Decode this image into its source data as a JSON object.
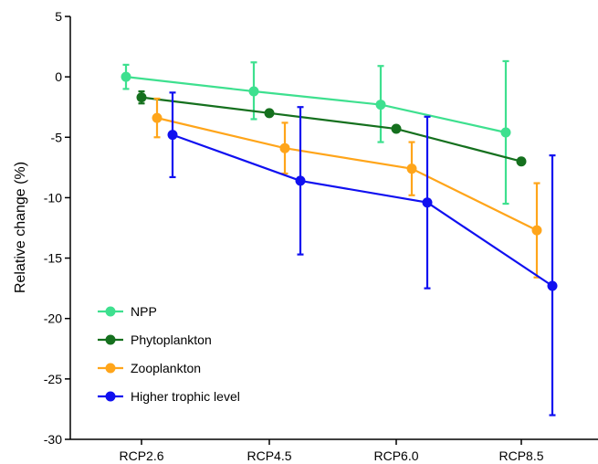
{
  "chart_data": {
    "type": "line",
    "title": "",
    "xlabel": "",
    "ylabel": "Relative change (%)",
    "categories": [
      "RCP2.6",
      "RCP4.5",
      "RCP6.0",
      "RCP8.5"
    ],
    "ylim": [
      -30,
      5
    ],
    "yticks": [
      5,
      0,
      -5,
      -10,
      -15,
      -20,
      -25,
      -30
    ],
    "grid": false,
    "legend_position": "bottom-left",
    "series": [
      {
        "name": "NPP",
        "color": "#3ee08f",
        "values": [
          0.0,
          -1.2,
          -2.3,
          -4.6
        ],
        "err_low": [
          -1.0,
          -3.5,
          -5.4,
          -10.5
        ],
        "err_high": [
          1.0,
          1.2,
          0.9,
          1.3
        ]
      },
      {
        "name": "Phytoplankton",
        "color": "#15701e",
        "values": [
          -1.7,
          -3.0,
          -4.3,
          -7.0
        ],
        "err_low": [
          -2.2,
          -3.0,
          -4.3,
          -7.0
        ],
        "err_high": [
          -1.2,
          -3.0,
          -4.3,
          -7.0
        ]
      },
      {
        "name": "Zooplankton",
        "color": "#ffa51a",
        "values": [
          -3.4,
          -5.9,
          -7.6,
          -12.7
        ],
        "err_low": [
          -5.0,
          -8.0,
          -9.8,
          -16.6
        ],
        "err_high": [
          -1.8,
          -3.8,
          -5.4,
          -8.8
        ]
      },
      {
        "name": "Higher trophic level",
        "color": "#1010f0",
        "values": [
          -4.8,
          -8.6,
          -10.4,
          -17.3
        ],
        "err_low": [
          -8.3,
          -14.7,
          -17.5,
          -28.0
        ],
        "err_high": [
          -1.3,
          -2.5,
          -3.3,
          -6.5
        ]
      }
    ]
  }
}
